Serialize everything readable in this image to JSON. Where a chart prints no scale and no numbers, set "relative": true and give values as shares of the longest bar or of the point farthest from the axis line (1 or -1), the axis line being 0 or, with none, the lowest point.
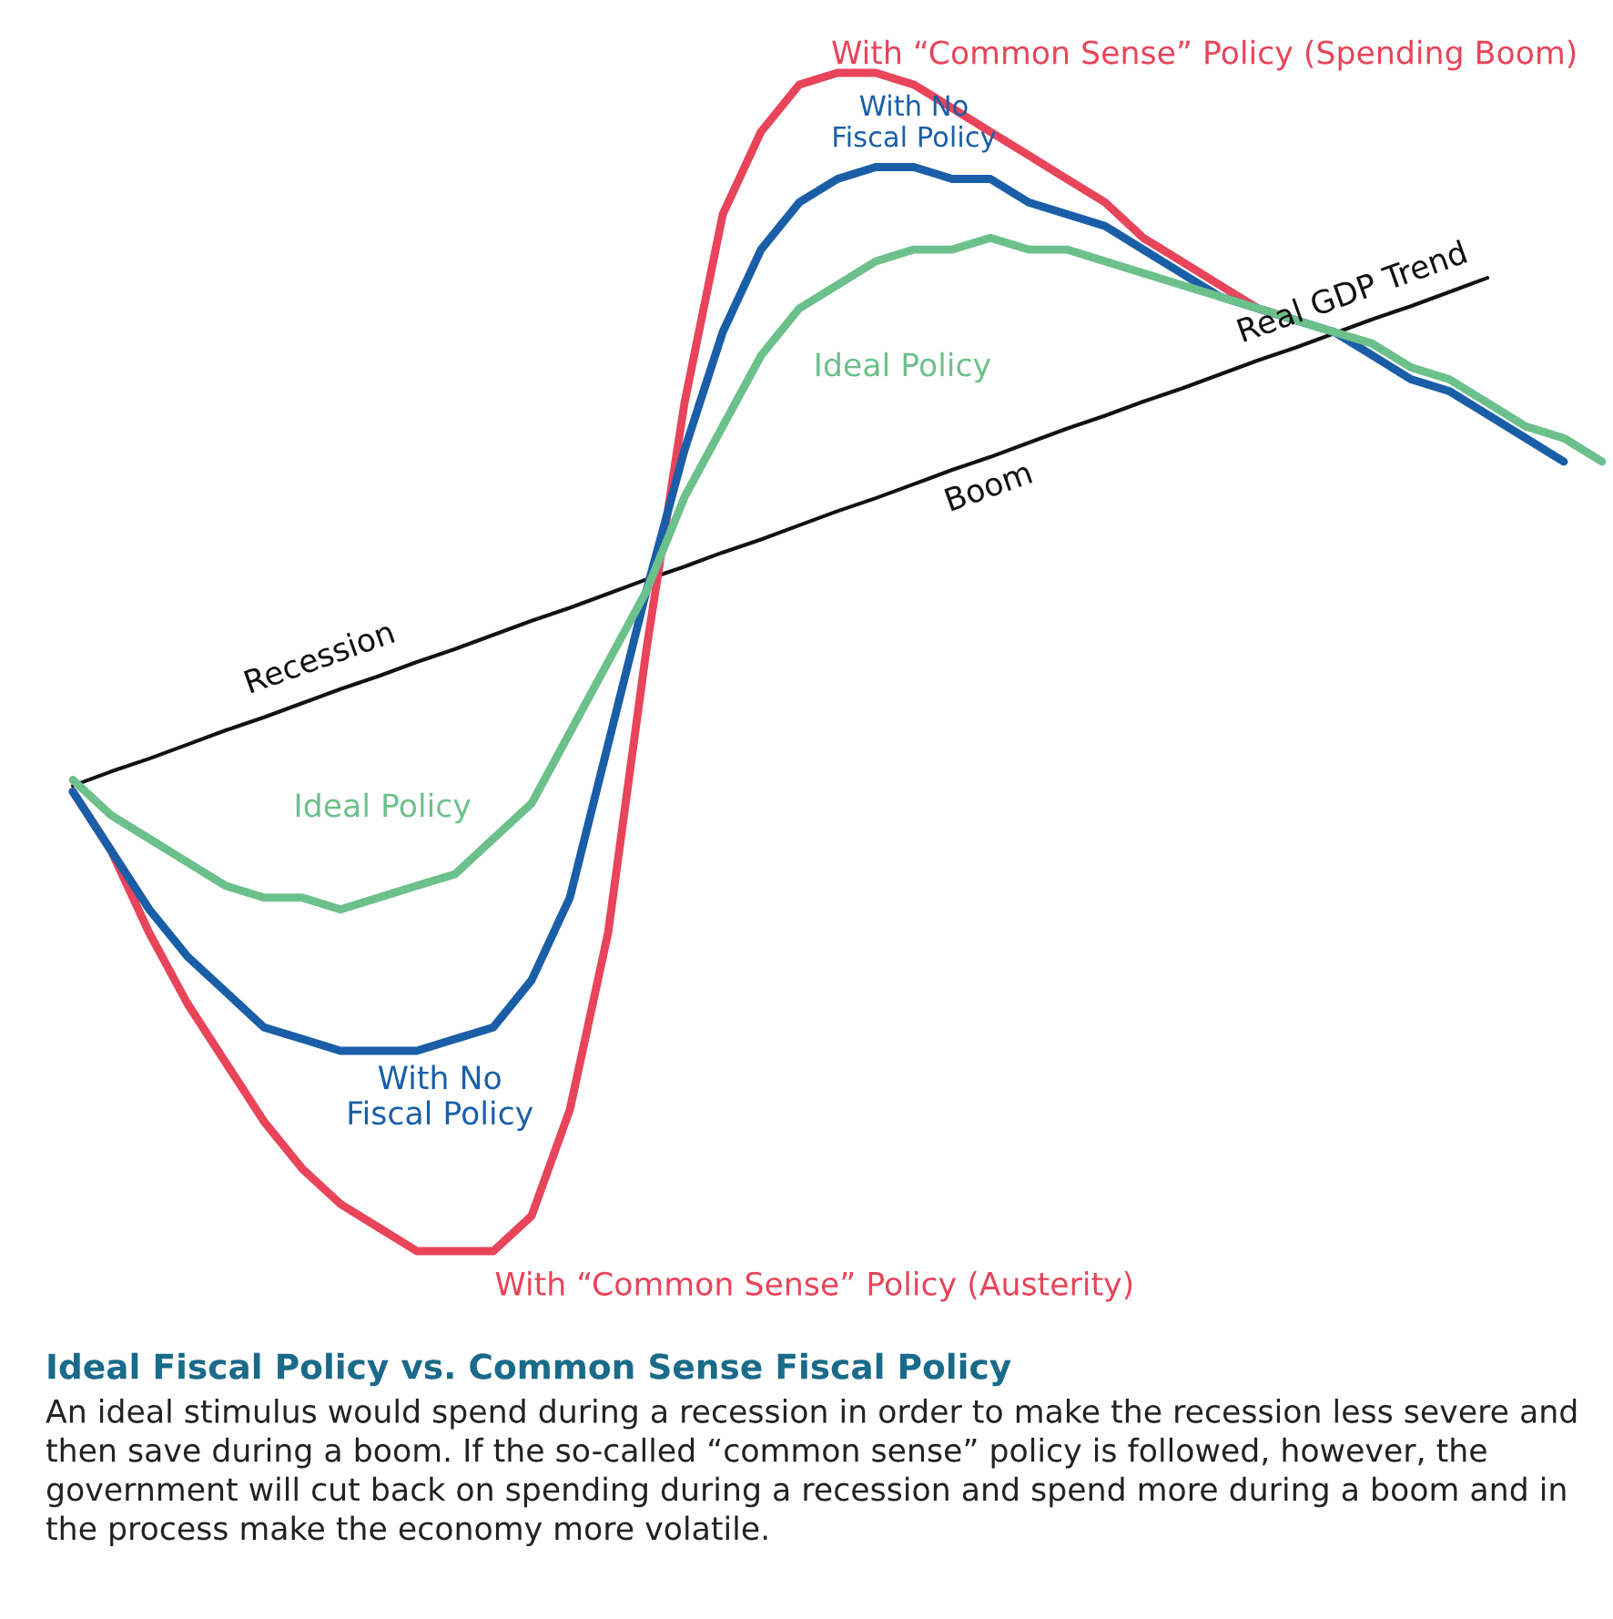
{
  "chart_data": {
    "type": "line",
    "relative": true,
    "title": "Ideal Fiscal Policy vs. Common Sense Fiscal Policy",
    "subtitle": "An ideal stimulus would spend during a recession in order to make the recession less severe and then save during a boom. If the so-called “common sense” policy is followed, however, the government will cut back on spending during a recession and spend more during a boom and in the process make the economy more volatile.",
    "categories": [
      null,
      null,
      null,
      null,
      null,
      null,
      null,
      null,
      null,
      null,
      null,
      null,
      null,
      null,
      null,
      null,
      null,
      null,
      null,
      null,
      null,
      null,
      null,
      null,
      null,
      null,
      null,
      null,
      null,
      null,
      null,
      null,
      null,
      null,
      null,
      null,
      null,
      null,
      null,
      null,
      null
    ],
    "series": [
      {
        "name": "Real GDP Trend",
        "color": "#111111",
        "values": [
          0.395,
          0.407,
          0.418,
          0.43,
          0.442,
          0.453,
          0.465,
          0.477,
          0.488,
          0.5,
          0.511,
          0.523,
          0.535,
          0.546,
          0.558,
          0.57,
          0.581,
          0.593,
          0.604,
          0.616,
          0.628,
          0.639,
          0.651,
          0.663,
          0.674,
          0.686,
          0.698,
          0.709,
          0.721,
          0.732,
          0.744,
          0.756,
          0.767,
          0.779,
          0.791,
          0.802,
          0.814,
          0.826,
          null,
          null,
          null
        ]
      },
      {
        "name": "With “Common Sense” Policy (Spending Boom)",
        "color": "#e8445a",
        "values": [
          0.39,
          0.34,
          0.27,
          0.21,
          0.16,
          0.11,
          0.07,
          0.04,
          0.02,
          0.0,
          0.0,
          0.0,
          0.03,
          0.12,
          0.27,
          0.51,
          0.72,
          0.88,
          0.95,
          0.99,
          1.0,
          1.0,
          0.99,
          0.97,
          0.95,
          0.93,
          0.91,
          0.89,
          0.86,
          0.84,
          0.82,
          0.8,
          0.79,
          null,
          null,
          null,
          null,
          null,
          null,
          null,
          null
        ]
      },
      {
        "name": "With No\nFiscal Policy",
        "color": "#1a5ea8",
        "values": [
          0.39,
          0.34,
          0.29,
          0.25,
          0.22,
          0.19,
          0.18,
          0.17,
          0.17,
          0.17,
          0.18,
          0.19,
          0.23,
          0.3,
          0.43,
          0.56,
          0.68,
          0.78,
          0.85,
          0.89,
          0.91,
          0.92,
          0.92,
          0.91,
          0.91,
          0.89,
          0.88,
          0.87,
          0.85,
          0.83,
          0.81,
          0.8,
          0.79,
          0.78,
          0.76,
          0.74,
          0.73,
          0.71,
          0.69,
          0.67,
          null
        ]
      },
      {
        "name": "Ideal Policy",
        "color": "#6cc08b",
        "values": [
          0.4,
          0.37,
          0.35,
          0.33,
          0.31,
          0.3,
          0.3,
          0.29,
          0.3,
          0.31,
          0.32,
          0.35,
          0.38,
          0.44,
          0.5,
          0.56,
          0.64,
          0.7,
          0.76,
          0.8,
          0.82,
          0.84,
          0.85,
          0.85,
          0.86,
          0.85,
          0.85,
          0.84,
          0.83,
          0.82,
          0.81,
          0.8,
          0.79,
          0.78,
          0.77,
          0.75,
          0.74,
          0.72,
          0.7,
          0.69,
          0.67
        ]
      }
    ],
    "annotations": [
      "With “Common Sense” Policy (Austerity)",
      "With No\nFiscal Policy",
      "Ideal Policy",
      "Recession",
      "Boom"
    ]
  }
}
